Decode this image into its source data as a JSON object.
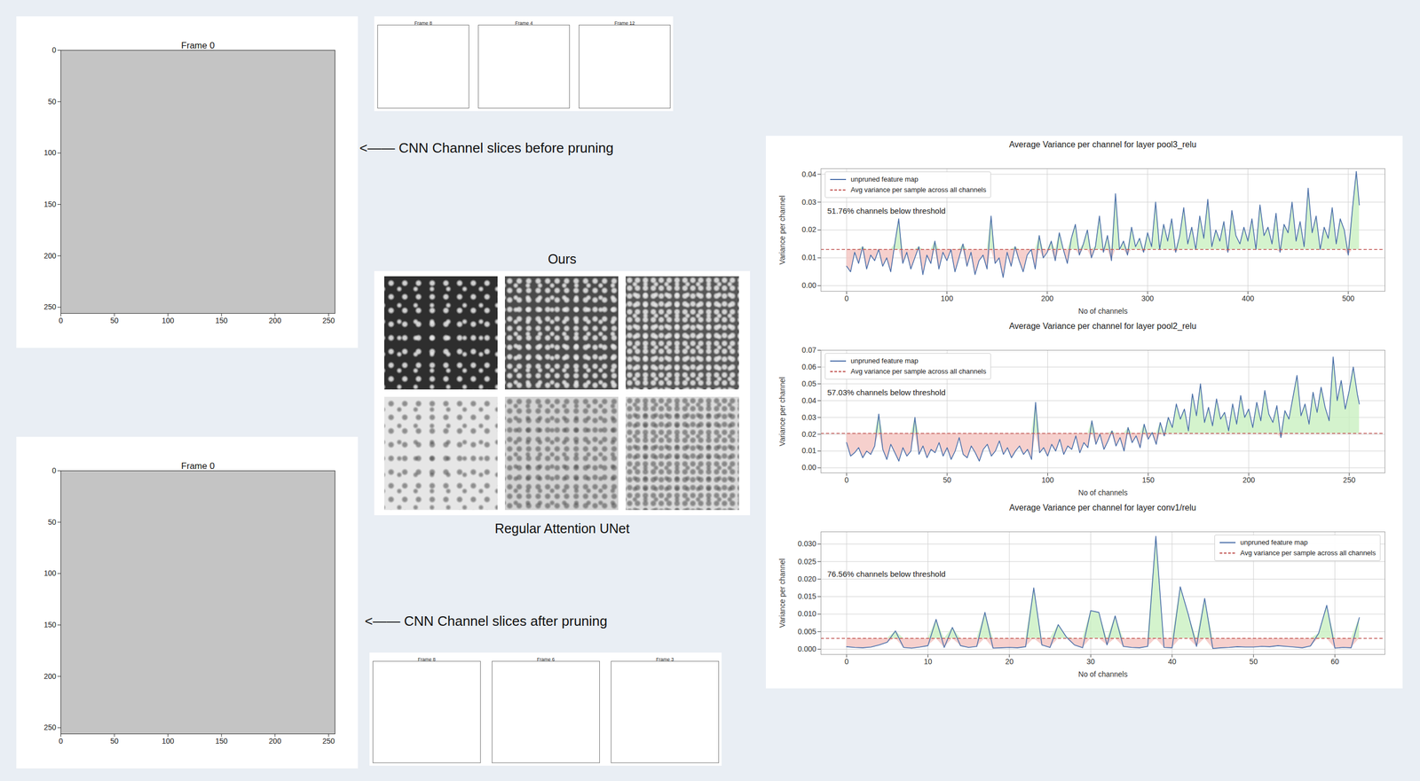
{
  "chart_data": [
    {
      "type": "contour",
      "title": "Frame 0",
      "color": "#c4c4c4",
      "xlim": [
        0,
        256
      ],
      "xticks": [
        0,
        50,
        100,
        150,
        200,
        250
      ],
      "ylim": [
        256,
        0
      ],
      "yticks": [
        0,
        50,
        100,
        150,
        200,
        250
      ]
    },
    {
      "type": "contour",
      "title": "Frame 0",
      "color": "#c4c4c4",
      "xlim": [
        0,
        256
      ],
      "xticks": [
        0,
        50,
        100,
        150,
        200,
        250
      ],
      "ylim": [
        256,
        0
      ],
      "yticks": [
        0,
        50,
        100,
        150,
        200,
        250
      ]
    },
    {
      "type": "contour",
      "title": "Frame 8",
      "color": "#ffffff",
      "tick_labels": false
    },
    {
      "type": "contour",
      "title": "Frame 4",
      "color": "#ffffff",
      "tick_labels": false
    },
    {
      "type": "contour",
      "title": "Frame 12",
      "color": "#ffffff",
      "tick_labels": false
    },
    {
      "type": "contour",
      "title": "Frame 8",
      "color": "#ffffff",
      "tick_labels": false
    },
    {
      "type": "contour",
      "title": "Frame 6",
      "color": "#ffffff",
      "tick_labels": false
    },
    {
      "type": "contour",
      "title": "Frame 3",
      "color": "#ffffff",
      "tick_labels": false
    },
    {
      "type": "line",
      "title": "Average Variance per channel for layer pool3_relu",
      "xlabel": "No of channels",
      "ylabel": "Variance per channel",
      "annotation": "51.76% channels below threshold",
      "grid": true,
      "legend": "upper left",
      "xlim": [
        -25.55,
        536.55
      ],
      "xticks": [
        0,
        100,
        200,
        300,
        400,
        500
      ],
      "ylim": [
        -0.002,
        0.042
      ],
      "yticks": [
        {
          "value": 0,
          "label": "0.00"
        },
        {
          "value": 0.01,
          "label": "0.01"
        },
        {
          "value": 0.02,
          "label": "0.02"
        },
        {
          "value": 0.03,
          "label": "0.03"
        },
        {
          "value": 0.04,
          "label": "0.04"
        }
      ],
      "x": [
        0,
        4,
        8,
        12,
        16,
        20,
        24,
        28,
        32,
        36,
        40,
        44,
        48,
        52,
        56,
        60,
        64,
        68,
        72,
        76,
        80,
        84,
        88,
        92,
        96,
        100,
        104,
        108,
        112,
        116,
        120,
        124,
        128,
        132,
        136,
        140,
        144,
        148,
        152,
        156,
        160,
        164,
        168,
        172,
        176,
        180,
        184,
        188,
        192,
        196,
        200,
        204,
        208,
        212,
        216,
        220,
        224,
        228,
        232,
        236,
        240,
        244,
        248,
        252,
        256,
        260,
        264,
        268,
        272,
        276,
        280,
        284,
        288,
        292,
        296,
        300,
        304,
        308,
        312,
        316,
        320,
        324,
        328,
        332,
        336,
        340,
        344,
        348,
        352,
        356,
        360,
        364,
        368,
        372,
        376,
        380,
        384,
        388,
        392,
        396,
        400,
        404,
        408,
        412,
        416,
        420,
        424,
        428,
        432,
        436,
        440,
        444,
        448,
        452,
        456,
        460,
        464,
        468,
        472,
        476,
        480,
        484,
        488,
        492,
        496,
        500,
        504,
        508,
        511
      ],
      "series": [
        {
          "name": "unpruned feature map",
          "type": "line",
          "color": "#4a6ea9",
          "line_style": "solid",
          "values": [
            0.007,
            0.005,
            0.012,
            0.008,
            0.014,
            0.006,
            0.011,
            0.009,
            0.013,
            0.007,
            0.01,
            0.005,
            0.015,
            0.024,
            0.008,
            0.012,
            0.006,
            0.01,
            0.014,
            0.004,
            0.011,
            0.008,
            0.016,
            0.006,
            0.012,
            0.009,
            0.013,
            0.005,
            0.01,
            0.015,
            0.007,
            0.012,
            0.004,
            0.009,
            0.011,
            0.006,
            0.025,
            0.008,
            0.01,
            0.003,
            0.012,
            0.007,
            0.014,
            0.009,
            0.005,
            0.011,
            0.013,
            0.006,
            0.018,
            0.01,
            0.012,
            0.016,
            0.009,
            0.019,
            0.013,
            0.008,
            0.017,
            0.022,
            0.011,
            0.015,
            0.02,
            0.01,
            0.014,
            0.025,
            0.012,
            0.018,
            0.009,
            0.033,
            0.013,
            0.016,
            0.011,
            0.021,
            0.014,
            0.017,
            0.012,
            0.019,
            0.014,
            0.03,
            0.013,
            0.022,
            0.016,
            0.024,
            0.012,
            0.018,
            0.028,
            0.015,
            0.021,
            0.013,
            0.025,
            0.017,
            0.031,
            0.014,
            0.02,
            0.016,
            0.023,
            0.012,
            0.027,
            0.018,
            0.015,
            0.021,
            0.016,
            0.024,
            0.013,
            0.029,
            0.018,
            0.021,
            0.015,
            0.026,
            0.012,
            0.022,
            0.019,
            0.03,
            0.016,
            0.023,
            0.014,
            0.035,
            0.019,
            0.025,
            0.013,
            0.021,
            0.017,
            0.028,
            0.015,
            0.024,
            0.02,
            0.011,
            0.027,
            0.041,
            0.029
          ]
        },
        {
          "name": "Avg variance per sample across all channels",
          "type": "hline",
          "color": "#c0504d",
          "line_style": "dashed",
          "value": 0.013
        }
      ]
    },
    {
      "type": "line",
      "title": "Average Variance per channel for layer pool2_relu",
      "xlabel": "No of channels",
      "ylabel": "Variance per channel",
      "annotation": "57.03% channels below threshold",
      "grid": true,
      "legend": "upper left",
      "xlim": [
        -12.75,
        267.75
      ],
      "xticks": [
        0,
        50,
        100,
        150,
        200,
        250
      ],
      "ylim": [
        -0.003,
        0.07
      ],
      "yticks": [
        {
          "value": 0,
          "label": "0.00"
        },
        {
          "value": 0.01,
          "label": "0.01"
        },
        {
          "value": 0.02,
          "label": "0.02"
        },
        {
          "value": 0.03,
          "label": "0.03"
        },
        {
          "value": 0.04,
          "label": "0.04"
        },
        {
          "value": 0.05,
          "label": "0.05"
        },
        {
          "value": 0.06,
          "label": "0.06"
        },
        {
          "value": 0.07,
          "label": "0.07"
        }
      ],
      "x": [
        0,
        2,
        4,
        6,
        8,
        10,
        12,
        14,
        16,
        18,
        20,
        22,
        24,
        26,
        28,
        30,
        32,
        34,
        36,
        38,
        40,
        42,
        44,
        46,
        48,
        50,
        52,
        54,
        56,
        58,
        60,
        62,
        64,
        66,
        68,
        70,
        72,
        74,
        76,
        78,
        80,
        82,
        84,
        86,
        88,
        90,
        92,
        94,
        96,
        98,
        100,
        102,
        104,
        106,
        108,
        110,
        112,
        114,
        116,
        118,
        120,
        122,
        124,
        126,
        128,
        130,
        132,
        134,
        136,
        138,
        140,
        142,
        144,
        146,
        148,
        150,
        152,
        154,
        156,
        158,
        160,
        162,
        164,
        166,
        168,
        170,
        172,
        174,
        176,
        178,
        180,
        182,
        184,
        186,
        188,
        190,
        192,
        194,
        196,
        198,
        200,
        202,
        204,
        206,
        208,
        210,
        212,
        214,
        216,
        218,
        220,
        222,
        224,
        226,
        228,
        230,
        232,
        234,
        236,
        238,
        240,
        242,
        244,
        246,
        248,
        250,
        252,
        254,
        255
      ],
      "series": [
        {
          "name": "unpruned feature map",
          "type": "line",
          "color": "#4a6ea9",
          "line_style": "solid",
          "values": [
            0.015,
            0.007,
            0.009,
            0.012,
            0.006,
            0.01,
            0.008,
            0.013,
            0.032,
            0.011,
            0.005,
            0.014,
            0.009,
            0.004,
            0.012,
            0.007,
            0.01,
            0.03,
            0.008,
            0.013,
            0.006,
            0.011,
            0.009,
            0.015,
            0.007,
            0.012,
            0.005,
            0.01,
            0.018,
            0.008,
            0.006,
            0.013,
            0.009,
            0.004,
            0.011,
            0.014,
            0.007,
            0.01,
            0.016,
            0.008,
            0.012,
            0.006,
            0.01,
            0.013,
            0.008,
            0.011,
            0.005,
            0.039,
            0.009,
            0.012,
            0.007,
            0.014,
            0.01,
            0.017,
            0.008,
            0.013,
            0.011,
            0.019,
            0.009,
            0.015,
            0.012,
            0.028,
            0.014,
            0.02,
            0.011,
            0.016,
            0.022,
            0.013,
            0.018,
            0.01,
            0.024,
            0.015,
            0.019,
            0.012,
            0.026,
            0.017,
            0.021,
            0.014,
            0.027,
            0.019,
            0.03,
            0.024,
            0.038,
            0.029,
            0.035,
            0.022,
            0.044,
            0.031,
            0.05,
            0.027,
            0.036,
            0.025,
            0.041,
            0.029,
            0.033,
            0.022,
            0.038,
            0.026,
            0.043,
            0.03,
            0.035,
            0.024,
            0.039,
            0.028,
            0.046,
            0.032,
            0.027,
            0.037,
            0.018,
            0.034,
            0.029,
            0.042,
            0.055,
            0.031,
            0.038,
            0.026,
            0.045,
            0.033,
            0.048,
            0.036,
            0.028,
            0.066,
            0.04,
            0.052,
            0.035,
            0.046,
            0.06,
            0.044,
            0.038
          ]
        },
        {
          "name": "Avg variance per sample across all channels",
          "type": "hline",
          "color": "#c0504d",
          "line_style": "dashed",
          "value": 0.0205
        }
      ]
    },
    {
      "type": "line",
      "title": "Average Variance per channel for layer conv1/relu",
      "xlabel": "No of channels",
      "ylabel": "Variance per channel",
      "annotation": "76.56% channels below threshold",
      "grid": true,
      "legend": "upper right",
      "xlim": [
        -3.15,
        66.15
      ],
      "xticks": [
        0,
        10,
        20,
        30,
        40,
        50,
        60
      ],
      "ylim": [
        -0.0015,
        0.0335
      ],
      "yticks": [
        {
          "value": 0,
          "label": "0.000"
        },
        {
          "value": 0.005,
          "label": "0.005"
        },
        {
          "value": 0.01,
          "label": "0.010"
        },
        {
          "value": 0.015,
          "label": "0.015"
        },
        {
          "value": 0.02,
          "label": "0.020"
        },
        {
          "value": 0.025,
          "label": "0.025"
        },
        {
          "value": 0.03,
          "label": "0.030"
        }
      ],
      "x": [
        0,
        1,
        2,
        3,
        4,
        5,
        6,
        7,
        8,
        9,
        10,
        11,
        12,
        13,
        14,
        15,
        16,
        17,
        18,
        19,
        20,
        21,
        22,
        23,
        24,
        25,
        26,
        27,
        28,
        29,
        30,
        31,
        32,
        33,
        34,
        35,
        36,
        37,
        38,
        39,
        40,
        41,
        42,
        43,
        44,
        45,
        46,
        47,
        48,
        49,
        50,
        51,
        52,
        53,
        54,
        55,
        56,
        57,
        58,
        59,
        60,
        61,
        62,
        63
      ],
      "series": [
        {
          "name": "unpruned feature map",
          "type": "line",
          "color": "#4a6ea9",
          "line_style": "solid",
          "values": [
            0.0007,
            0.0005,
            0.0004,
            0.0006,
            0.0012,
            0.002,
            0.0052,
            0.0005,
            0.0003,
            0.0006,
            0.001,
            0.0085,
            0.0005,
            0.0062,
            0.001,
            0.0005,
            0.0008,
            0.0105,
            0.0003,
            0.0004,
            0.0005,
            0.0004,
            0.0007,
            0.0175,
            0.0012,
            0.0005,
            0.007,
            0.0035,
            0.0012,
            0.0004,
            0.011,
            0.0105,
            0.0012,
            0.0095,
            0.0008,
            0.0005,
            0.0004,
            0.0008,
            0.0322,
            0.0005,
            0.0004,
            0.0178,
            0.0098,
            0.0008,
            0.0145,
            0.0002,
            0.0004,
            0.0005,
            0.0007,
            0.0006,
            0.0006,
            0.0008,
            0.0007,
            0.001,
            0.0008,
            0.0006,
            0.0004,
            0.0009,
            0.0045,
            0.0125,
            0.0003,
            0.0005,
            0.0004,
            0.009
          ]
        },
        {
          "name": "Avg variance per sample across all channels",
          "type": "hline",
          "color": "#c0504d",
          "line_style": "dashed",
          "value": 0.0031
        }
      ]
    }
  ],
  "annotations": [
    "<—— CNN Channel slices before pruning",
    "<—— CNN Channel slices after pruning"
  ],
  "image_panel": {
    "top_label": "Ours",
    "bottom_label": "Regular Attention UNet",
    "rows": 2,
    "columns": 3
  }
}
